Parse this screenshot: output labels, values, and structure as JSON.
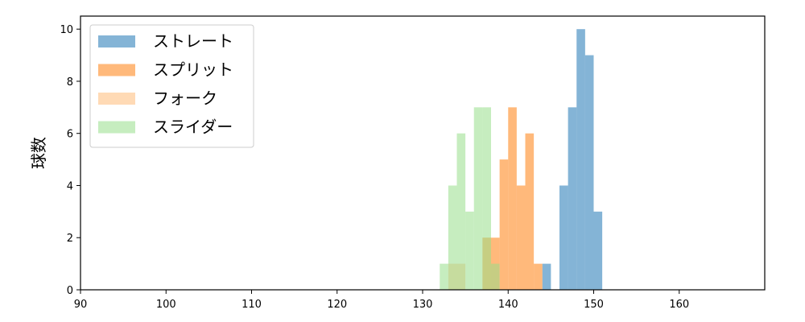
{
  "chart_data": {
    "type": "histogram",
    "ylabel": "球数",
    "xlabel": "",
    "xlim": [
      90,
      170
    ],
    "ylim": [
      0,
      10.5
    ],
    "xticks": [
      90,
      100,
      110,
      120,
      130,
      140,
      150,
      160
    ],
    "yticks": [
      0,
      2,
      4,
      6,
      8,
      10
    ],
    "bin_width": 1,
    "legend_position": "top-left",
    "series": [
      {
        "name": "ストレート",
        "color": "#1f77b4",
        "bins": [
          {
            "x0": 144,
            "value": 1
          },
          {
            "x0": 146,
            "value": 4
          },
          {
            "x0": 147,
            "value": 7
          },
          {
            "x0": 148,
            "value": 10
          },
          {
            "x0": 149,
            "value": 9
          },
          {
            "x0": 150,
            "value": 3
          }
        ]
      },
      {
        "name": "スプリット",
        "color": "#ff7f0e",
        "bins": [
          {
            "x0": 137,
            "value": 2
          },
          {
            "x0": 138,
            "value": 2
          },
          {
            "x0": 139,
            "value": 5
          },
          {
            "x0": 140,
            "value": 7
          },
          {
            "x0": 141,
            "value": 4
          },
          {
            "x0": 142,
            "value": 6
          },
          {
            "x0": 143,
            "value": 1
          }
        ]
      },
      {
        "name": "フォーク",
        "color": "#ffbb78",
        "bins": [
          {
            "x0": 133,
            "value": 1
          },
          {
            "x0": 134,
            "value": 1
          },
          {
            "x0": 137,
            "value": 2
          }
        ]
      },
      {
        "name": "スライダー",
        "color": "#98df8a",
        "bins": [
          {
            "x0": 132,
            "value": 1
          },
          {
            "x0": 133,
            "value": 4
          },
          {
            "x0": 134,
            "value": 6
          },
          {
            "x0": 135,
            "value": 3
          },
          {
            "x0": 136,
            "value": 7
          },
          {
            "x0": 137,
            "value": 7
          },
          {
            "x0": 138,
            "value": 1
          }
        ]
      }
    ]
  }
}
